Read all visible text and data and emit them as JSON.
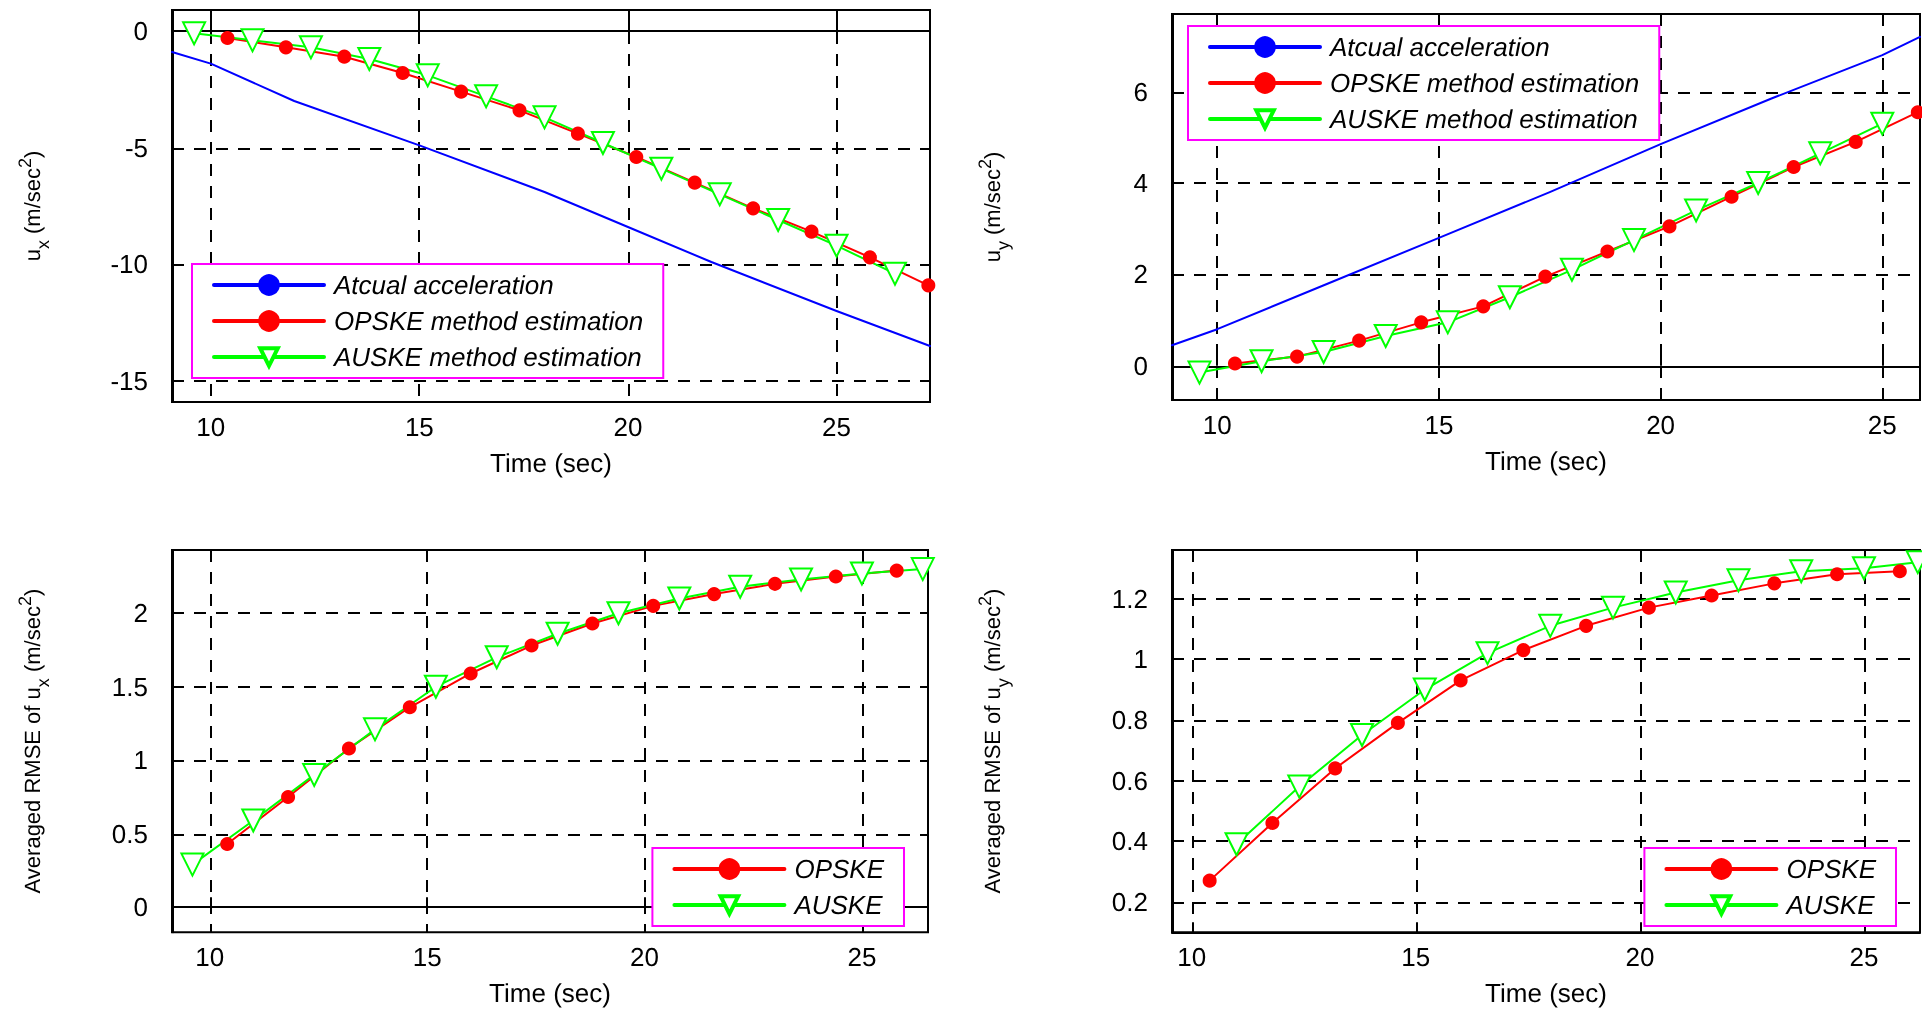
{
  "chart_data": [
    {
      "type": "line",
      "xlabel": "Time (sec)",
      "ylabel": "u$_{x}$ (m/sec$^{2}$)",
      "xlim": [
        9.07,
        27.24
      ],
      "ylim": [
        -15.9,
        0.9
      ],
      "xticks": [
        10,
        15,
        20,
        25
      ],
      "yticks": [
        -15,
        -10,
        -5,
        0
      ],
      "grid": true,
      "legend": "bottom left",
      "series": [
        {
          "name": "Atcual acceleration",
          "color": "#0000ff",
          "marker": "none",
          "x": [
            9.07,
            10,
            12,
            15,
            18,
            20,
            22,
            25,
            27.24
          ],
          "values": [
            -0.9,
            -1.4,
            -3.0,
            -4.9,
            -6.9,
            -8.4,
            -9.9,
            -12.0,
            -13.5
          ]
        },
        {
          "name": "OPSKE method estimation",
          "color": "#ff0000",
          "marker": "circle",
          "x": [
            10.4,
            11.8,
            13.2,
            14.6,
            16.0,
            17.4,
            18.8,
            20.2,
            21.6,
            23.0,
            24.4,
            25.8,
            27.2
          ],
          "values": [
            -0.3,
            -0.7,
            -1.1,
            -1.8,
            -2.6,
            -3.4,
            -4.4,
            -5.4,
            -6.5,
            -7.6,
            -8.6,
            -9.7,
            -10.9
          ]
        },
        {
          "name": "AUSKE method estimation",
          "color": "#00ff00",
          "marker": "triangle",
          "x": [
            9.6,
            11.0,
            12.4,
            13.8,
            15.2,
            16.6,
            18.0,
            19.4,
            20.8,
            22.2,
            23.6,
            25.0,
            26.4
          ],
          "values": [
            -0.1,
            -0.4,
            -0.7,
            -1.2,
            -1.9,
            -2.8,
            -3.7,
            -4.8,
            -5.9,
            -7.0,
            -8.1,
            -9.2,
            -10.4
          ]
        }
      ]
    },
    {
      "type": "line",
      "xlabel": "Time (sec)",
      "ylabel": "u$_{y}$ (m/sec$^{2}$)",
      "xlim": [
        8.98,
        25.85
      ],
      "ylim": [
        -0.75,
        7.7
      ],
      "xticks": [
        10,
        15,
        20,
        25
      ],
      "yticks": [
        0,
        2,
        4,
        6
      ],
      "grid": true,
      "legend": "top left",
      "series": [
        {
          "name": "Atcual acceleration",
          "color": "#0000ff",
          "marker": "none",
          "x": [
            8.98,
            10,
            12.5,
            15,
            17.5,
            20,
            22.5,
            25,
            25.85
          ],
          "values": [
            0.45,
            0.8,
            1.8,
            2.8,
            3.8,
            4.85,
            5.85,
            6.8,
            7.2
          ]
        },
        {
          "name": "OPSKE method estimation",
          "color": "#ff0000",
          "marker": "circle",
          "x": [
            10.4,
            11.8,
            13.2,
            14.6,
            16.0,
            17.4,
            18.8,
            20.2,
            21.6,
            23.0,
            24.4,
            25.8
          ],
          "values": [
            0.05,
            0.2,
            0.55,
            0.95,
            1.3,
            1.95,
            2.5,
            3.05,
            3.7,
            4.35,
            4.9,
            5.55
          ]
        },
        {
          "name": "AUSKE method estimation",
          "color": "#00ff00",
          "marker": "triangle",
          "x": [
            9.6,
            11.0,
            12.4,
            13.8,
            15.2,
            16.6,
            18.0,
            19.4,
            20.8,
            22.2,
            23.6,
            25.0
          ],
          "values": [
            -0.15,
            0.1,
            0.3,
            0.65,
            0.95,
            1.5,
            2.1,
            2.75,
            3.4,
            4.0,
            4.65,
            5.3
          ]
        }
      ]
    },
    {
      "type": "line",
      "xlabel": "Time (sec)",
      "ylabel": "Averaged RMSE of u$_{x}$ (m/sec$^{2}$)",
      "xlim": [
        9.13,
        26.52
      ],
      "ylim": [
        -0.17,
        2.43
      ],
      "xticks": [
        10,
        15,
        20,
        25
      ],
      "yticks": [
        0,
        0.5,
        1,
        1.5,
        2
      ],
      "grid": true,
      "legend": "bottom right",
      "series": [
        {
          "name": "OPSKE",
          "color": "#ff0000",
          "marker": "circle",
          "x": [
            10.4,
            11.8,
            13.2,
            14.6,
            16.0,
            17.4,
            18.8,
            20.2,
            21.6,
            23.0,
            24.4,
            25.8
          ],
          "values": [
            0.43,
            0.75,
            1.08,
            1.36,
            1.59,
            1.78,
            1.93,
            2.05,
            2.13,
            2.2,
            2.25,
            2.29
          ]
        },
        {
          "name": "AUSKE",
          "color": "#00ff00",
          "marker": "triangle",
          "x": [
            9.6,
            11.0,
            12.4,
            13.8,
            15.2,
            16.6,
            18.0,
            19.4,
            20.8,
            22.2,
            23.6,
            25.0,
            26.4
          ],
          "values": [
            0.29,
            0.59,
            0.9,
            1.21,
            1.5,
            1.7,
            1.86,
            2.0,
            2.1,
            2.18,
            2.23,
            2.27,
            2.3
          ]
        }
      ]
    },
    {
      "type": "line",
      "xlabel": "Time (sec)",
      "ylabel": "Averaged RMSE of u$_{y}$ (m/sec$^{2}$)",
      "xlim": [
        9.56,
        26.25
      ],
      "ylim": [
        0.1,
        1.36
      ],
      "xticks": [
        10,
        15,
        20,
        25
      ],
      "yticks": [
        0.2,
        0.4,
        0.6,
        0.8,
        1,
        1.2
      ],
      "grid": true,
      "legend": "bottom right",
      "series": [
        {
          "name": "OPSKE",
          "color": "#ff0000",
          "marker": "circle",
          "x": [
            10.4,
            11.8,
            13.2,
            14.6,
            16.0,
            17.4,
            18.8,
            20.2,
            21.6,
            23.0,
            24.4,
            25.8
          ],
          "values": [
            0.27,
            0.46,
            0.64,
            0.79,
            0.93,
            1.03,
            1.11,
            1.17,
            1.21,
            1.25,
            1.28,
            1.29
          ]
        },
        {
          "name": "AUSKE",
          "color": "#00ff00",
          "marker": "triangle",
          "x": [
            11.0,
            12.4,
            13.8,
            15.2,
            16.6,
            18.0,
            19.4,
            20.8,
            22.2,
            23.6,
            25.0,
            26.2
          ],
          "values": [
            0.39,
            0.58,
            0.75,
            0.9,
            1.02,
            1.11,
            1.17,
            1.22,
            1.26,
            1.29,
            1.3,
            1.32
          ]
        }
      ]
    }
  ]
}
